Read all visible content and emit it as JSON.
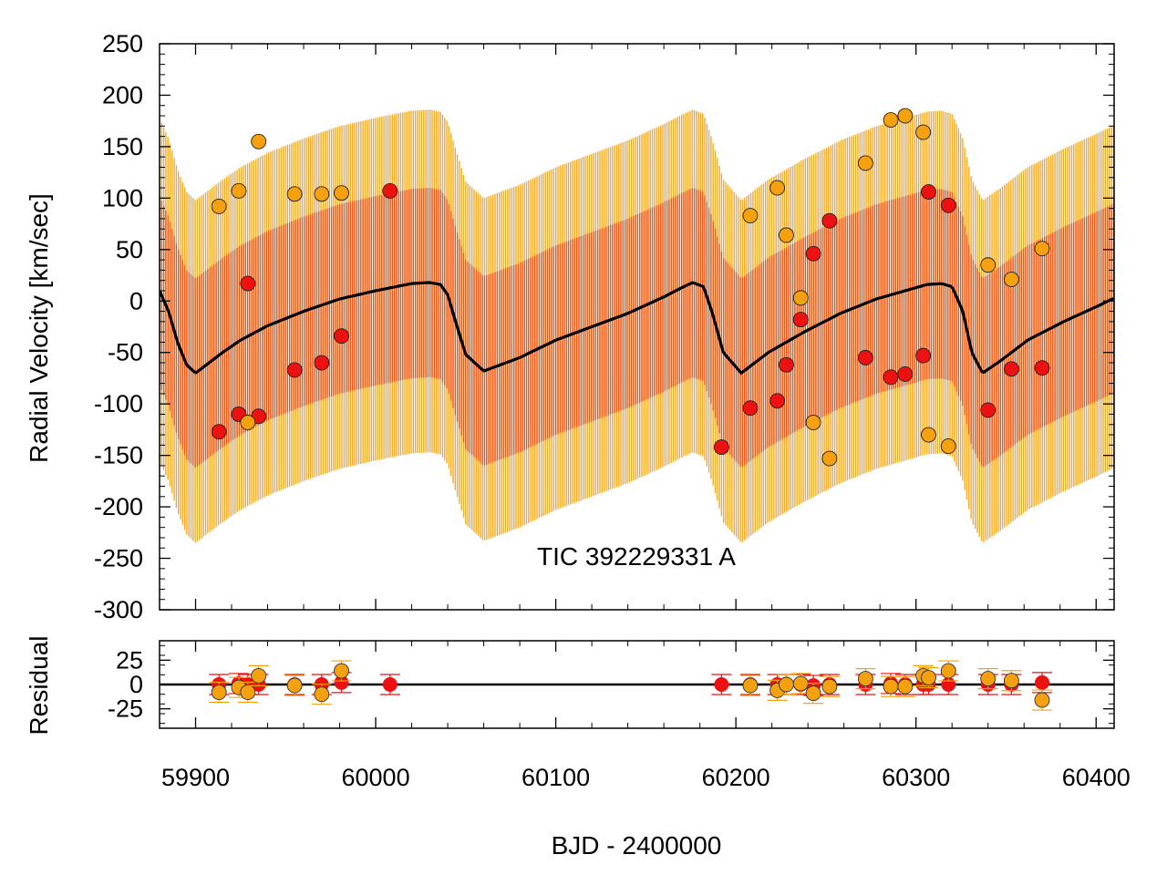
{
  "chart_data": {
    "type": "scatter",
    "annotation": "TIC 392229331 A",
    "xlabel": "BJD - 2400000",
    "top_panel": {
      "ylabel": "Radial Velocity [km/sec]",
      "xlim": [
        59880,
        60410
      ],
      "ylim": [
        -300,
        250
      ],
      "yticks": [
        250,
        200,
        150,
        100,
        50,
        0,
        -50,
        -100,
        -150,
        -200,
        -250,
        -300
      ],
      "model_curve": {
        "name": "outer orbit model",
        "x": [
          59880,
          59885,
          59890,
          59895,
          59900,
          59906,
          59915,
          59925,
          59940,
          59960,
          59980,
          60000,
          60020,
          60030,
          60036,
          60040,
          60044,
          60050,
          60060,
          60080,
          60100,
          60120,
          60140,
          60160,
          60170,
          60176,
          60182,
          60187,
          60193,
          60203,
          60218,
          60238,
          60258,
          60278,
          60298,
          60306,
          60314,
          60320,
          60326,
          60331,
          60337,
          60347,
          60362,
          60382,
          60402,
          60410
        ],
        "y": [
          10,
          -10,
          -40,
          -62,
          -70,
          -62,
          -50,
          -38,
          -24,
          -10,
          2,
          10,
          17,
          18,
          16,
          6,
          -18,
          -52,
          -68,
          -55,
          -38,
          -25,
          -12,
          4,
          13,
          18,
          14,
          -12,
          -50,
          -70,
          -50,
          -30,
          -12,
          2,
          12,
          16,
          17,
          14,
          -10,
          -50,
          -70,
          -58,
          -38,
          -20,
          -4,
          3
        ]
      },
      "envelopes": [
        {
          "name": "outer envelope",
          "color": "#f0a51e",
          "upper_offset": 168,
          "lower_offset": 165
        },
        {
          "name": "inner envelope",
          "color": "#e94a14",
          "upper_offset": 92,
          "lower_offset": 92
        }
      ],
      "series": [
        {
          "name": "component 1",
          "color": "#ee1111",
          "x": [
            59913,
            59924,
            59929,
            59935,
            59955,
            59970,
            59981,
            60008,
            60192,
            60208,
            60223,
            60228,
            60236,
            60243,
            60252,
            60272,
            60286,
            60294,
            60304,
            60307,
            60318,
            60340,
            60353,
            60370
          ],
          "y": [
            -127,
            -110,
            17,
            -112,
            -67,
            -60,
            -34,
            107,
            -142,
            -104,
            -97,
            -62,
            -18,
            46,
            78,
            -55,
            -74,
            -71,
            -53,
            106,
            93,
            -106,
            -66,
            -65
          ]
        },
        {
          "name": "component 2",
          "color": "#f5a00f",
          "x": [
            59913,
            59924,
            59929,
            59935,
            59955,
            59970,
            59981,
            60208,
            60223,
            60228,
            60236,
            60243,
            60252,
            60272,
            60286,
            60294,
            60304,
            60307,
            60318,
            60340,
            60353,
            60370
          ],
          "y": [
            92,
            107,
            -118,
            155,
            104,
            104,
            105,
            83,
            110,
            64,
            3,
            -118,
            -153,
            134,
            176,
            180,
            164,
            -130,
            -141,
            35,
            21,
            51
          ]
        }
      ]
    },
    "bottom_panel": {
      "ylabel": "Residual",
      "xlim": [
        59880,
        60410
      ],
      "ylim": [
        -45,
        45
      ],
      "yticks": [
        25,
        0,
        -25
      ],
      "xticks": [
        59900,
        60000,
        60100,
        60200,
        60300,
        60400
      ],
      "zero_line": 0,
      "series": [
        {
          "name": "component 1 residual",
          "color": "#ee1111",
          "x": [
            59913,
            59924,
            59929,
            59935,
            59955,
            59970,
            59981,
            60008,
            60192,
            60208,
            60223,
            60228,
            60236,
            60243,
            60252,
            60272,
            60286,
            60294,
            60304,
            60307,
            60318,
            60340,
            60353,
            60370
          ],
          "y": [
            0,
            1,
            0,
            0,
            0,
            0,
            2,
            0,
            0,
            0,
            0,
            0,
            0,
            -1,
            0,
            0,
            1,
            0,
            0,
            0,
            0,
            0,
            0,
            2
          ]
        },
        {
          "name": "component 2 residual",
          "color": "#f5a00f",
          "x": [
            59913,
            59924,
            59929,
            59935,
            59955,
            59970,
            59981,
            60208,
            60223,
            60228,
            60236,
            60243,
            60252,
            60272,
            60286,
            60294,
            60304,
            60307,
            60318,
            60340,
            60353,
            60370
          ],
          "y": [
            -8,
            -3,
            -8,
            9,
            -1,
            -10,
            14,
            -1,
            -6,
            0,
            1,
            -9,
            -2,
            6,
            -2,
            -2,
            9,
            7,
            14,
            6,
            4,
            -16
          ]
        }
      ]
    }
  }
}
